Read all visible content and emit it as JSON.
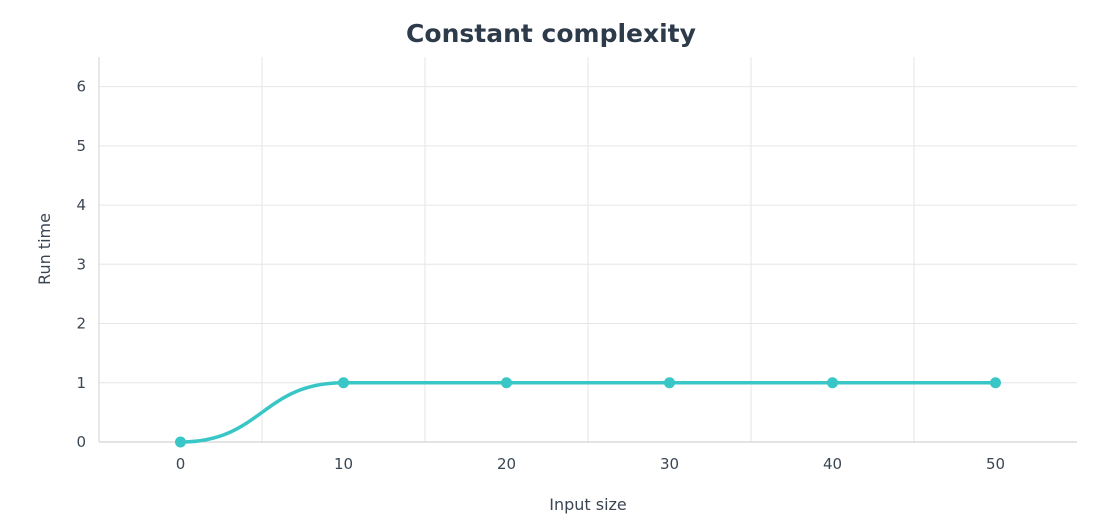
{
  "chart_data": {
    "type": "line",
    "title": "Constant complexity",
    "xlabel": "Input size",
    "ylabel": "Run time",
    "xlim": [
      -5,
      55
    ],
    "ylim": [
      0,
      6.5
    ],
    "xticks": [
      0,
      10,
      20,
      30,
      40,
      50
    ],
    "yticks": [
      0,
      1,
      2,
      3,
      4,
      5,
      6
    ],
    "x_minor_gridlines": [
      5,
      15,
      25,
      35,
      45
    ],
    "grid": true,
    "smooth": true,
    "series": [
      {
        "x": [
          0,
          10,
          20,
          30,
          40,
          50
        ],
        "values": [
          0,
          1,
          1,
          1,
          1,
          1
        ],
        "color": "#38c6c6"
      }
    ]
  }
}
